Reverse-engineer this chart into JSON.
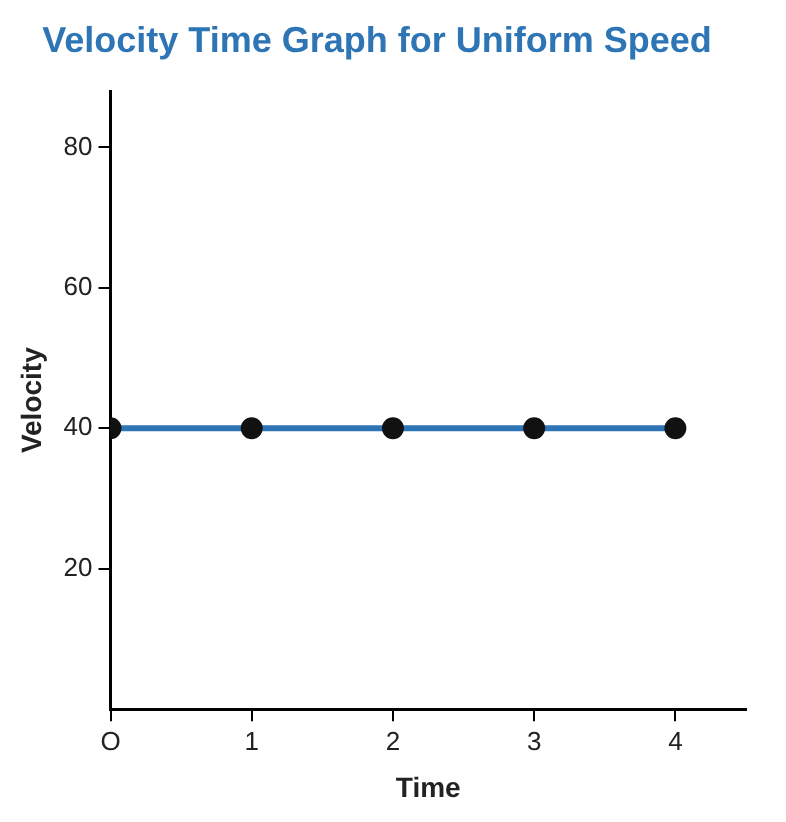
{
  "chart_data": {
    "type": "line",
    "title": "Velocity Time Graph for Uniform Speed",
    "xlabel": "Time",
    "ylabel": "Velocity",
    "x": [
      0,
      1,
      2,
      3,
      4
    ],
    "series": [
      {
        "color": "#2e75b6",
        "values": [
          40,
          40,
          40,
          40,
          40
        ]
      }
    ],
    "xlim": [
      0,
      4.5
    ],
    "xticks": [
      {
        "value": 0,
        "label": "O"
      },
      1,
      2,
      3,
      4
    ],
    "ylim": [
      0,
      88
    ],
    "yticks": [
      20,
      40,
      60,
      80
    ],
    "grid": false,
    "legend": false,
    "marker": "circle",
    "line_style": "solid"
  }
}
